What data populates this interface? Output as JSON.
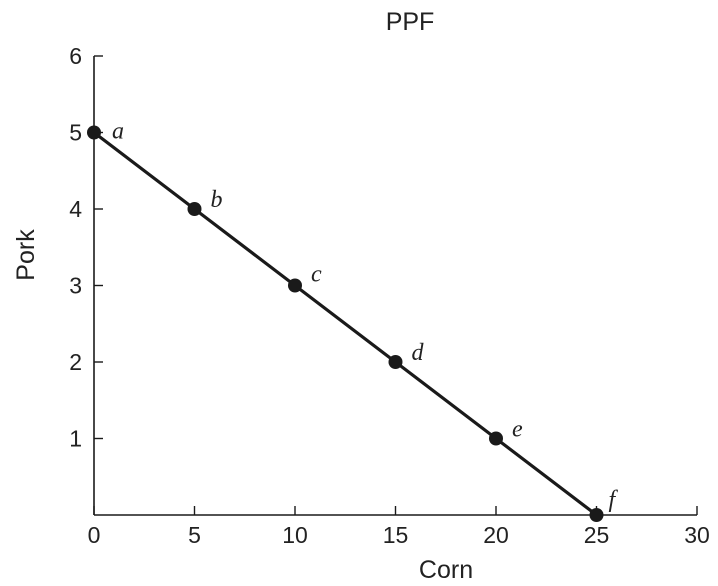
{
  "chart_data": {
    "type": "line",
    "title": "PPF",
    "xlabel": "Corn",
    "ylabel": "Pork",
    "xlim": [
      0,
      30
    ],
    "ylim": [
      0,
      6
    ],
    "xticks": [
      0,
      5,
      10,
      15,
      20,
      25,
      30
    ],
    "yticks": [
      1,
      2,
      3,
      4,
      5,
      6
    ],
    "grid": false,
    "series": [
      {
        "x": [
          0,
          5,
          10,
          15,
          20,
          25
        ],
        "y": [
          5,
          4,
          3,
          2,
          1,
          0
        ],
        "point_labels": [
          "a",
          "b",
          "c",
          "d",
          "e",
          "f"
        ],
        "color": "#1a1a1a"
      }
    ]
  }
}
